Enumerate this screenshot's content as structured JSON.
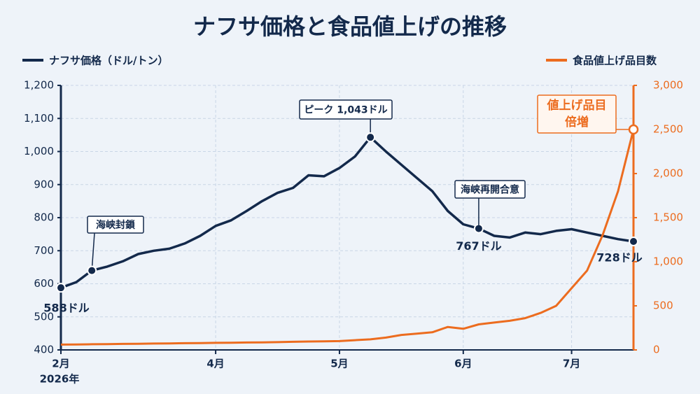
{
  "chart_data": {
    "type": "line",
    "title": "ナフサ価格と食品値上げの推移",
    "categories": [
      "2月",
      null,
      null,
      null,
      null,
      null,
      null,
      null,
      null,
      null,
      "4月",
      null,
      null,
      null,
      null,
      null,
      null,
      null,
      "5月",
      null,
      null,
      null,
      null,
      null,
      null,
      null,
      "6月",
      null,
      null,
      null,
      null,
      null,
      null,
      "7月",
      null,
      null,
      null,
      null
    ],
    "x_year": "2026年",
    "series": [
      {
        "name": "ナフサ価格（ドル/トン）",
        "color": "#13294b",
        "axis": "y",
        "values": [
          588,
          605,
          640,
          652,
          668,
          690,
          700,
          706,
          722,
          745,
          775,
          792,
          820,
          850,
          875,
          890,
          928,
          925,
          950,
          985,
          1043,
          1000,
          960,
          920,
          880,
          820,
          780,
          767,
          745,
          740,
          755,
          750,
          760,
          765,
          755,
          745,
          735,
          728
        ],
        "value_labels": [
          "588ドル",
          null,
          null,
          null,
          null,
          null,
          null,
          null,
          null,
          null,
          null,
          null,
          null,
          null,
          null,
          null,
          null,
          null,
          null,
          null,
          null,
          null,
          null,
          null,
          null,
          null,
          null,
          "767ドル",
          null,
          null,
          null,
          null,
          null,
          null,
          null,
          null,
          null,
          "728ドル"
        ]
      },
      {
        "name": "食品値上げ品目数",
        "color": "#ec6c1f",
        "axis": "y2",
        "values": [
          60,
          62,
          64,
          66,
          68,
          70,
          72,
          74,
          76,
          78,
          80,
          82,
          84,
          86,
          88,
          92,
          95,
          98,
          100,
          110,
          120,
          140,
          170,
          185,
          200,
          260,
          240,
          290,
          310,
          330,
          360,
          420,
          500,
          700,
          900,
          1300,
          1800,
          2500
        ]
      }
    ],
    "annotations": [
      {
        "series": 0,
        "point": 2,
        "lines": [
          "海峡封鎖"
        ]
      },
      {
        "series": 0,
        "point": 20,
        "lines": [
          "ピーク 1,043ドル"
        ]
      },
      {
        "series": 0,
        "point": 27,
        "lines": [
          "海峡再開合意"
        ]
      },
      {
        "series": 1,
        "point": 37,
        "lines": [
          "値上げ品目",
          "倍増"
        ]
      }
    ],
    "ylim": [
      400,
      1200
    ],
    "yticks": [
      400,
      500,
      600,
      700,
      800,
      900,
      {
        "value": 1000,
        "label": "1,000"
      },
      {
        "value": 1100,
        "label": "1,100"
      },
      {
        "value": 1200,
        "label": "1,200"
      }
    ],
    "y2lim": [
      0,
      3000
    ],
    "y2ticks": [
      0,
      500,
      {
        "value": 1000,
        "label": "1,000"
      },
      {
        "value": 1500,
        "label": "1,500"
      },
      {
        "value": 2000,
        "label": "2,000"
      },
      {
        "value": 2500,
        "label": "2,500"
      },
      {
        "value": 3000,
        "label": "3,000"
      }
    ],
    "grid": true
  }
}
